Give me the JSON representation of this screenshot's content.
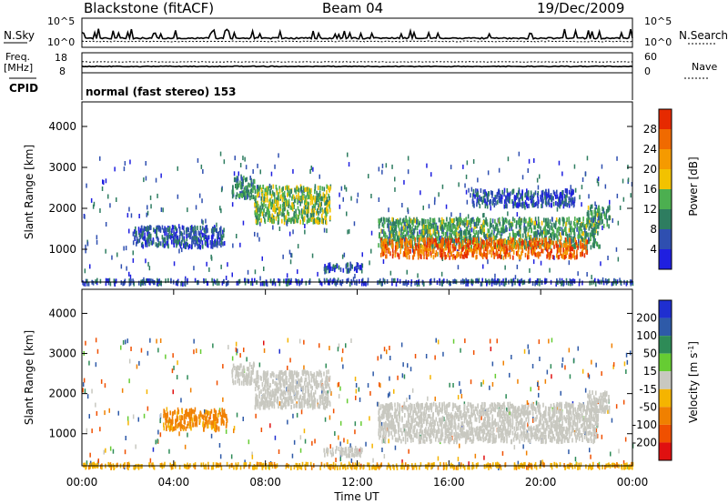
{
  "header": {
    "title": "Blackstone (fitACF)",
    "beam": "Beam 04",
    "date": "19/Dec/2009"
  },
  "noise_panel": {
    "left_label": "N.Sky",
    "left_ticks": [
      "10^5",
      "10^0"
    ],
    "right_label": "N.Search",
    "right_ticks": [
      "10^5",
      "10^0"
    ]
  },
  "freq_panel": {
    "left_label_1": "Freq.",
    "left_label_2": "[MHz]",
    "left_ticks": [
      "18",
      "8"
    ],
    "right_label": "Nave",
    "right_ticks": [
      "60",
      "0"
    ]
  },
  "cpid": {
    "label": "CPID",
    "text": "normal (fast stereo) 153"
  },
  "colors": {
    "power_scale": [
      "#1f1fe0",
      "#2f4fb0",
      "#2e7d60",
      "#4caf50",
      "#f2c200",
      "#f59a00",
      "#f06a00",
      "#e62a00"
    ],
    "velocity_scale": [
      "#1f2fd0",
      "#2e5aa8",
      "#2e8b57",
      "#66cc33",
      "#c8c8c0",
      "#f5b400",
      "#f08000",
      "#f05000",
      "#e01010"
    ]
  },
  "chart_data": [
    {
      "type": "heatmap",
      "name": "power",
      "ylabel": "Slant Range [km]",
      "y_ticks": [
        1000,
        2000,
        3000,
        4000
      ],
      "ylim": [
        200,
        4600
      ],
      "xlim": [
        "00:00",
        "24:00"
      ],
      "colorbar": {
        "label": "Power [dB]",
        "range": [
          0,
          32
        ],
        "ticks": [
          "4",
          "8",
          "12",
          "16",
          "20",
          "24",
          "28"
        ]
      },
      "regions": [
        {
          "t_start": 0.0,
          "t_end": 24.0,
          "r_min": 200,
          "r_max": 300,
          "level_db": 6
        },
        {
          "t_start": 2.2,
          "t_end": 6.2,
          "r_min": 1100,
          "r_max": 1600,
          "level_db": 6
        },
        {
          "t_start": 6.5,
          "t_end": 7.5,
          "r_min": 2300,
          "r_max": 2800,
          "level_db": 10
        },
        {
          "t_start": 7.5,
          "t_end": 10.8,
          "r_min": 1700,
          "r_max": 2600,
          "level_db": 14
        },
        {
          "t_start": 10.5,
          "t_end": 12.2,
          "r_min": 500,
          "r_max": 700,
          "level_db": 6
        },
        {
          "t_start": 12.9,
          "t_end": 22.5,
          "r_min": 1100,
          "r_max": 1800,
          "level_db": 12
        },
        {
          "t_start": 13.0,
          "t_end": 22.0,
          "r_min": 850,
          "r_max": 1300,
          "level_db": 26
        },
        {
          "t_start": 17.0,
          "t_end": 21.5,
          "r_min": 2100,
          "r_max": 2500,
          "level_db": 6
        },
        {
          "t_start": 22.0,
          "t_end": 23.0,
          "r_min": 1600,
          "r_max": 2100,
          "level_db": 12
        }
      ]
    },
    {
      "type": "heatmap",
      "name": "velocity",
      "ylabel": "Slant Range [km]",
      "xlabel": "Time UT",
      "x_ticks": [
        "00:00",
        "04:00",
        "08:00",
        "12:00",
        "16:00",
        "20:00",
        "00:00"
      ],
      "y_ticks": [
        1000,
        2000,
        3000,
        4000
      ],
      "ylim": [
        200,
        4600
      ],
      "colorbar": {
        "label": "Velocity [m s^-1]",
        "ticks": [
          "200",
          "100",
          "50",
          "15",
          "-15",
          "-50",
          "-100",
          "-200"
        ]
      },
      "regions": [
        {
          "t_start": 0.0,
          "t_end": 24.0,
          "r_min": 200,
          "r_max": 300,
          "velocity": -40
        },
        {
          "t_start": 3.5,
          "t_end": 6.3,
          "r_min": 1150,
          "r_max": 1650,
          "velocity": -60
        },
        {
          "t_start": 6.5,
          "t_end": 7.5,
          "r_min": 2300,
          "r_max": 2800,
          "velocity": 0
        },
        {
          "t_start": 7.5,
          "t_end": 10.8,
          "r_min": 1700,
          "r_max": 2600,
          "velocity": 0
        },
        {
          "t_start": 10.5,
          "t_end": 12.2,
          "r_min": 500,
          "r_max": 700,
          "velocity": 0
        },
        {
          "t_start": 12.9,
          "t_end": 22.5,
          "r_min": 850,
          "r_max": 1800,
          "velocity": 0
        },
        {
          "t_start": 22.0,
          "t_end": 23.0,
          "r_min": 1600,
          "r_max": 2100,
          "velocity": 0
        }
      ]
    }
  ]
}
